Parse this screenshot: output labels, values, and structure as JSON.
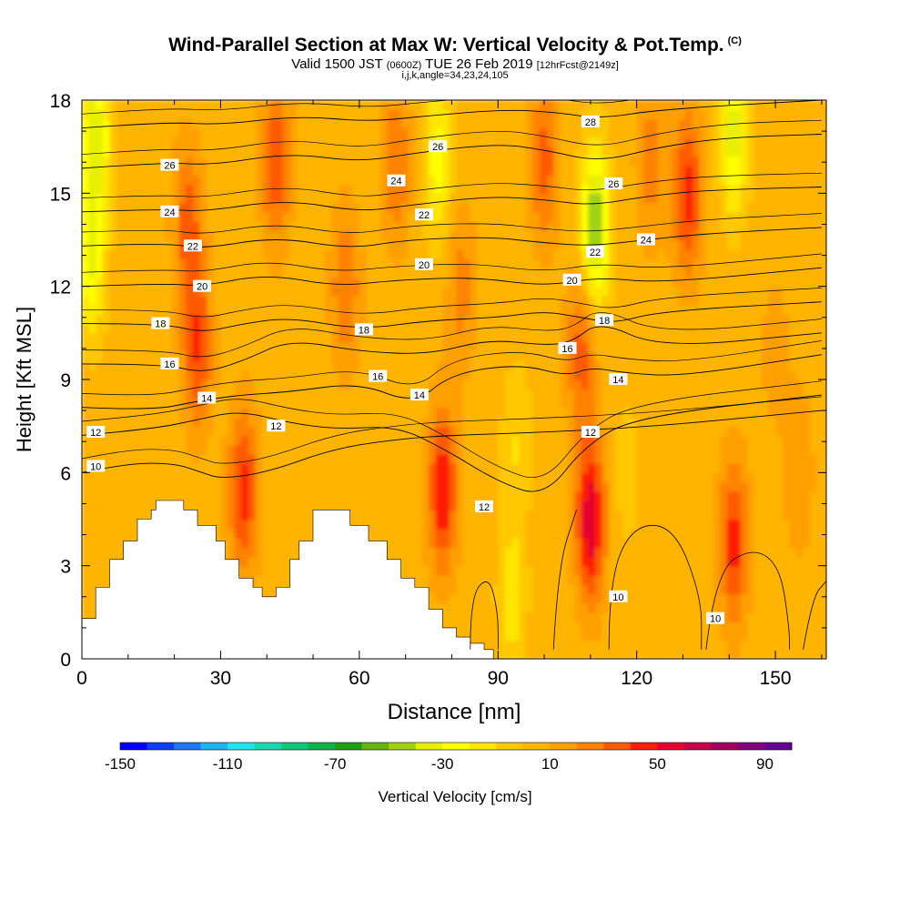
{
  "title": {
    "main": "Wind-Parallel Section at Max W: Vertical Velocity & Pot.Temp.",
    "copyright": "(C)",
    "valid_a": "Valid 1500 JST",
    "valid_zulu": "(0600Z)",
    "valid_b": "TUE 26 Feb 2019",
    "fcst": "[12hrFcst@2149z]",
    "indices": "i,j,k,angle=34,23,24,105"
  },
  "chart_data": {
    "type": "heatmap",
    "xlabel": "Distance [nm]",
    "ylabel": "Height [Kft MSL]",
    "xlim": [
      0,
      161
    ],
    "ylim": [
      0,
      18
    ],
    "xticks": [
      "0",
      "30",
      "60",
      "90",
      "120",
      "150"
    ],
    "yticks": [
      "0",
      "3",
      "6",
      "9",
      "12",
      "15",
      "18"
    ],
    "colorbar": {
      "label": "Vertical Velocity [cm/s]",
      "tick_labels": [
        "-150",
        "-110",
        "-70",
        "-30",
        "10",
        "50",
        "90"
      ],
      "min": -150,
      "max": 100,
      "colors": [
        "#0000ff",
        "#0a3ff5",
        "#1a78f0",
        "#1eb4f0",
        "#1ee6f0",
        "#18d8b0",
        "#12c878",
        "#10b446",
        "#1ea014",
        "#64b414",
        "#a0d214",
        "#e6f000",
        "#ffff00",
        "#ffe600",
        "#ffc800",
        "#ffb400",
        "#ffa000",
        "#ff8200",
        "#ff5a00",
        "#ff1e00",
        "#e6002d",
        "#c8004b",
        "#a00064",
        "#82007d",
        "#640096"
      ]
    },
    "velocity_field": {
      "background_cm_s": 5,
      "cores": [
        {
          "x": 2,
          "y": 13,
          "value": -35
        },
        {
          "x": 3,
          "y": 17,
          "value": -40
        },
        {
          "x": 23,
          "y": 14,
          "value": 30
        },
        {
          "x": 25,
          "y": 10,
          "value": 35
        },
        {
          "x": 35,
          "y": 5.5,
          "value": 40
        },
        {
          "x": 42,
          "y": 16,
          "value": 35
        },
        {
          "x": 57,
          "y": 12,
          "value": 25
        },
        {
          "x": 68,
          "y": 16,
          "value": 25
        },
        {
          "x": 78,
          "y": 5.5,
          "value": 45
        },
        {
          "x": 82,
          "y": 12,
          "value": 20
        },
        {
          "x": 77,
          "y": 16,
          "value": -30
        },
        {
          "x": 94,
          "y": 7,
          "value": -15
        },
        {
          "x": 93,
          "y": 2,
          "value": -20
        },
        {
          "x": 100,
          "y": 16,
          "value": 30
        },
        {
          "x": 110,
          "y": 4.5,
          "value": 55
        },
        {
          "x": 111,
          "y": 14,
          "value": -55
        },
        {
          "x": 108,
          "y": 10,
          "value": 30
        },
        {
          "x": 118,
          "y": 6,
          "value": -10
        },
        {
          "x": 123,
          "y": 16,
          "value": 20
        },
        {
          "x": 131,
          "y": 15,
          "value": 40
        },
        {
          "x": 141,
          "y": 17,
          "value": -40
        },
        {
          "x": 141,
          "y": 3.8,
          "value": 40
        },
        {
          "x": 150,
          "y": 10,
          "value": 10
        },
        {
          "x": 155,
          "y": 6,
          "value": 15
        }
      ]
    },
    "terrain_heights_kft": [
      {
        "x": 0,
        "h": 1.3
      },
      {
        "x": 3,
        "h": 2.3
      },
      {
        "x": 6,
        "h": 3.2
      },
      {
        "x": 9,
        "h": 3.8
      },
      {
        "x": 12,
        "h": 4.5
      },
      {
        "x": 15,
        "h": 4.8
      },
      {
        "x": 16,
        "h": 5.1
      },
      {
        "x": 22,
        "h": 4.8
      },
      {
        "x": 25,
        "h": 4.3
      },
      {
        "x": 29,
        "h": 3.8
      },
      {
        "x": 31,
        "h": 3.2
      },
      {
        "x": 34,
        "h": 2.6
      },
      {
        "x": 37,
        "h": 2.3
      },
      {
        "x": 39,
        "h": 2.0
      },
      {
        "x": 42,
        "h": 2.3
      },
      {
        "x": 45,
        "h": 3.2
      },
      {
        "x": 47,
        "h": 3.8
      },
      {
        "x": 50,
        "h": 4.8
      },
      {
        "x": 58,
        "h": 4.3
      },
      {
        "x": 62,
        "h": 3.8
      },
      {
        "x": 66,
        "h": 3.2
      },
      {
        "x": 69,
        "h": 2.6
      },
      {
        "x": 72,
        "h": 2.3
      },
      {
        "x": 75,
        "h": 1.6
      },
      {
        "x": 78,
        "h": 1.0
      },
      {
        "x": 81,
        "h": 0.7
      },
      {
        "x": 84,
        "h": 0.5
      },
      {
        "x": 87,
        "h": 0.3
      },
      {
        "x": 89,
        "h": 0
      }
    ],
    "isentropes": [
      {
        "level": 10,
        "label": "10",
        "pts": [
          [
            0,
            6.0
          ],
          [
            10,
            6.3
          ],
          [
            20,
            6.3
          ],
          [
            26,
            6.0
          ],
          [
            30,
            5.8
          ],
          [
            40,
            6.0
          ],
          [
            55,
            6.8
          ],
          [
            70,
            7.1
          ],
          [
            80,
            7.2
          ],
          [
            100,
            7.3
          ],
          [
            125,
            7.5
          ],
          [
            160,
            8.0
          ]
        ]
      },
      {
        "level": 12,
        "label": "12",
        "pts": [
          [
            0,
            7.2
          ],
          [
            15,
            7.4
          ],
          [
            25,
            7.7
          ],
          [
            34,
            8.0
          ],
          [
            45,
            7.6
          ],
          [
            55,
            7.4
          ],
          [
            68,
            7.5
          ],
          [
            78,
            6.8
          ],
          [
            90,
            5.7
          ],
          [
            100,
            5.2
          ],
          [
            109,
            6.9
          ],
          [
            120,
            7.8
          ],
          [
            160,
            8.5
          ]
        ]
      },
      {
        "level": 14,
        "label": "14",
        "pts": [
          [
            0,
            8.1
          ],
          [
            15,
            8.0
          ],
          [
            25,
            8.3
          ],
          [
            34,
            8.5
          ],
          [
            45,
            8.6
          ],
          [
            60,
            8.9
          ],
          [
            72,
            8.2
          ],
          [
            80,
            9.2
          ],
          [
            95,
            9.5
          ],
          [
            105,
            9.1
          ],
          [
            110,
            9.4
          ],
          [
            118,
            9.2
          ],
          [
            130,
            9.1
          ],
          [
            160,
            9.8
          ]
        ]
      },
      {
        "level": 16,
        "label": "16",
        "pts": [
          [
            0,
            9.5
          ],
          [
            18,
            9.5
          ],
          [
            26,
            9.2
          ],
          [
            35,
            9.6
          ],
          [
            45,
            10.3
          ],
          [
            60,
            9.9
          ],
          [
            75,
            9.8
          ],
          [
            88,
            10.3
          ],
          [
            100,
            10.1
          ],
          [
            106,
            10.2
          ],
          [
            112,
            10.9
          ],
          [
            125,
            10.0
          ],
          [
            160,
            10.5
          ]
        ]
      },
      {
        "level": 18,
        "label": "18",
        "pts": [
          [
            0,
            10.8
          ],
          [
            18,
            10.8
          ],
          [
            26,
            10.5
          ],
          [
            35,
            10.8
          ],
          [
            45,
            11.0
          ],
          [
            60,
            10.6
          ],
          [
            75,
            10.9
          ],
          [
            90,
            11.0
          ],
          [
            100,
            11.2
          ],
          [
            108,
            11.0
          ],
          [
            115,
            10.8
          ],
          [
            125,
            11.2
          ],
          [
            160,
            11.5
          ]
        ]
      },
      {
        "level": 20,
        "label": "20",
        "pts": [
          [
            0,
            12.0
          ],
          [
            18,
            12.1
          ],
          [
            26,
            12.0
          ],
          [
            40,
            12.4
          ],
          [
            55,
            12.0
          ],
          [
            68,
            12.2
          ],
          [
            85,
            12.3
          ],
          [
            100,
            12.0
          ],
          [
            112,
            12.3
          ],
          [
            125,
            12.1
          ],
          [
            160,
            12.6
          ]
        ]
      },
      {
        "level": 22,
        "label": "22",
        "pts": [
          [
            0,
            13.3
          ],
          [
            18,
            13.4
          ],
          [
            26,
            13.2
          ],
          [
            42,
            13.6
          ],
          [
            58,
            13.2
          ],
          [
            70,
            13.5
          ],
          [
            88,
            13.6
          ],
          [
            100,
            13.4
          ],
          [
            110,
            13.3
          ],
          [
            122,
            13.5
          ],
          [
            135,
            13.7
          ],
          [
            160,
            13.9
          ]
        ]
      },
      {
        "level": 24,
        "label": "24",
        "pts": [
          [
            0,
            14.4
          ],
          [
            18,
            14.5
          ],
          [
            26,
            14.4
          ],
          [
            44,
            14.8
          ],
          [
            60,
            14.4
          ],
          [
            70,
            14.6
          ],
          [
            88,
            14.9
          ],
          [
            100,
            14.8
          ],
          [
            110,
            14.6
          ],
          [
            122,
            14.9
          ],
          [
            135,
            15.1
          ],
          [
            160,
            15.2
          ]
        ]
      },
      {
        "level": 26,
        "label": "26",
        "pts": [
          [
            0,
            15.8
          ],
          [
            18,
            16.0
          ],
          [
            28,
            15.9
          ],
          [
            45,
            16.3
          ],
          [
            60,
            16.0
          ],
          [
            72,
            16.3
          ],
          [
            90,
            16.6
          ],
          [
            100,
            16.4
          ],
          [
            112,
            16.0
          ],
          [
            125,
            16.5
          ],
          [
            140,
            16.8
          ],
          [
            160,
            16.9
          ]
        ]
      },
      {
        "level": 28,
        "label": "28",
        "pts": [
          [
            0,
            17.1
          ],
          [
            18,
            17.3
          ],
          [
            30,
            17.2
          ],
          [
            47,
            17.5
          ],
          [
            62,
            17.3
          ],
          [
            75,
            17.5
          ],
          [
            92,
            17.7
          ],
          [
            103,
            17.6
          ],
          [
            112,
            17.4
          ],
          [
            125,
            17.7
          ],
          [
            160,
            18.0
          ]
        ]
      }
    ],
    "vertical_contours": [
      {
        "label": "10",
        "pts": [
          [
            114,
            0.3
          ],
          [
            114,
            2.5
          ],
          [
            119,
            4.3
          ],
          [
            128,
            4.3
          ],
          [
            134,
            2.0
          ],
          [
            134,
            0.3
          ]
        ]
      },
      {
        "label": "10",
        "pts": [
          [
            135,
            0.3
          ],
          [
            137,
            2.8
          ],
          [
            145,
            3.6
          ],
          [
            151,
            3.0
          ],
          [
            153,
            1.0
          ],
          [
            153,
            0.3
          ]
        ]
      },
      {
        "label": "",
        "pts": [
          [
            84,
            0.3
          ],
          [
            84,
            2.0
          ],
          [
            88,
            2.7
          ],
          [
            90,
            1.5
          ],
          [
            90,
            0.3
          ]
        ]
      },
      {
        "label": "",
        "pts": [
          [
            156,
            0.3
          ],
          [
            158,
            2.0
          ],
          [
            161,
            2.5
          ]
        ]
      },
      {
        "label": "",
        "pts": [
          [
            102,
            0.3
          ],
          [
            103,
            3.0
          ],
          [
            107,
            4.8
          ]
        ]
      }
    ],
    "isentrope_labels": [
      {
        "text": "26",
        "x": 19,
        "y": 15.9
      },
      {
        "text": "24",
        "x": 19,
        "y": 14.4
      },
      {
        "text": "22",
        "x": 24,
        "y": 13.3
      },
      {
        "text": "20",
        "x": 26,
        "y": 12.0
      },
      {
        "text": "18",
        "x": 17,
        "y": 10.8
      },
      {
        "text": "16",
        "x": 19,
        "y": 9.5
      },
      {
        "text": "14",
        "x": 27,
        "y": 8.4
      },
      {
        "text": "12",
        "x": 3,
        "y": 7.3
      },
      {
        "text": "10",
        "x": 3,
        "y": 6.2
      },
      {
        "text": "12",
        "x": 42,
        "y": 7.5
      },
      {
        "text": "18",
        "x": 61,
        "y": 10.6
      },
      {
        "text": "16",
        "x": 64,
        "y": 9.1
      },
      {
        "text": "14",
        "x": 73,
        "y": 8.5
      },
      {
        "text": "24",
        "x": 68,
        "y": 15.4
      },
      {
        "text": "22",
        "x": 74,
        "y": 14.3
      },
      {
        "text": "20",
        "x": 74,
        "y": 12.7
      },
      {
        "text": "26",
        "x": 77,
        "y": 16.5
      },
      {
        "text": "12",
        "x": 87,
        "y": 4.9
      },
      {
        "text": "20",
        "x": 106,
        "y": 12.2
      },
      {
        "text": "16",
        "x": 105,
        "y": 10.0
      },
      {
        "text": "22",
        "x": 111,
        "y": 13.1
      },
      {
        "text": "26",
        "x": 115,
        "y": 15.3
      },
      {
        "text": "28",
        "x": 110,
        "y": 17.3
      },
      {
        "text": "18",
        "x": 113,
        "y": 10.9
      },
      {
        "text": "14",
        "x": 116,
        "y": 9.0
      },
      {
        "text": "12",
        "x": 110,
        "y": 7.3
      },
      {
        "text": "24",
        "x": 122,
        "y": 13.5
      },
      {
        "text": "10",
        "x": 116,
        "y": 2.0
      },
      {
        "text": "10",
        "x": 137,
        "y": 1.3
      }
    ]
  }
}
